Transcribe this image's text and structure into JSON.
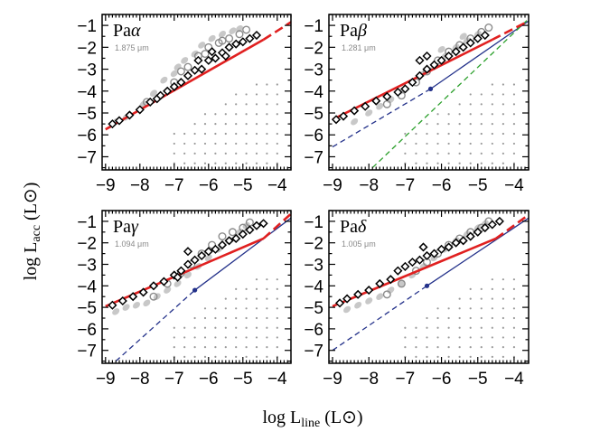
{
  "chart_data": {
    "type": "scatter",
    "layout": "2x2 grid",
    "xlabel": "log L",
    "xlabel_sub": "line",
    "xlabel_unit": "(L",
    "ylabel": "log L",
    "ylabel_sub": "acc",
    "ylabel_unit": "(L",
    "unit_symbol": "⊙",
    "unit_close": ")",
    "xlim": [
      -9.1,
      -3.6
    ],
    "ylim": [
      -7.6,
      -0.5
    ],
    "xticks": [
      -9,
      -8,
      -7,
      -6,
      -5,
      -4
    ],
    "xtick_labels": [
      "−9",
      "−8",
      "−7",
      "−6",
      "−5",
      "−4"
    ],
    "yticks": [
      -7,
      -6,
      -5,
      -4,
      -3,
      -2,
      -1
    ],
    "ytick_labels": [
      "−7",
      "−6",
      "−5",
      "−4",
      "−3",
      "−2",
      "−1"
    ],
    "panels": [
      {
        "name": "Pa",
        "greek": "α",
        "wavelength": "1.875 μm",
        "fit_red": {
          "x": [
            -9.0,
            -4.4
          ],
          "y": [
            -5.75,
            -1.65
          ]
        },
        "fit_red_dashed": {
          "x": [
            -4.4,
            -3.6
          ],
          "y": [
            -1.65,
            -0.85
          ]
        },
        "lines": [],
        "data": {
          "diamonds": [
            [
              -8.8,
              -5.5
            ],
            [
              -8.6,
              -5.35
            ],
            [
              -8.3,
              -5.1
            ],
            [
              -8.0,
              -4.85
            ],
            [
              -7.7,
              -4.5
            ],
            [
              -7.5,
              -4.35
            ],
            [
              -7.2,
              -4.0
            ],
            [
              -7.0,
              -3.8
            ],
            [
              -6.8,
              -3.6
            ],
            [
              -6.6,
              -3.3
            ],
            [
              -6.4,
              -3.05
            ],
            [
              -6.2,
              -3.0
            ],
            [
              -6.0,
              -2.6
            ],
            [
              -5.8,
              -2.5
            ],
            [
              -5.6,
              -2.25
            ],
            [
              -5.4,
              -2.0
            ],
            [
              -5.2,
              -1.85
            ],
            [
              -5.0,
              -1.75
            ],
            [
              -4.8,
              -1.6
            ],
            [
              -4.6,
              -1.45
            ],
            [
              -6.3,
              -2.6
            ],
            [
              -5.9,
              -2.2
            ],
            [
              -5.5,
              -2.4
            ],
            [
              -7.4,
              -4.2
            ]
          ],
          "circles": [
            [
              -7.8,
              -4.5
            ],
            [
              -7.0,
              -3.6
            ],
            [
              -6.6,
              -2.9
            ],
            [
              -6.3,
              -2.4
            ],
            [
              -6.0,
              -2.0
            ],
            [
              -5.7,
              -1.8
            ],
            [
              -5.4,
              -1.6
            ],
            [
              -5.1,
              -1.4
            ],
            [
              -4.9,
              -1.2
            ],
            [
              -6.8,
              -3.1
            ],
            [
              -6.1,
              -2.3
            ],
            [
              -5.6,
              -1.7
            ]
          ],
          "gray": [
            [
              -7.9,
              -4.6
            ],
            [
              -7.6,
              -4.1
            ],
            [
              -7.3,
              -3.5
            ],
            [
              -7.0,
              -3.2
            ],
            [
              -6.7,
              -2.6
            ],
            [
              -6.4,
              -2.3
            ],
            [
              -6.2,
              -1.9
            ],
            [
              -5.9,
              -1.6
            ],
            [
              -5.6,
              -1.4
            ],
            [
              -5.3,
              -1.25
            ],
            [
              -5.1,
              -1.15
            ],
            [
              -8.4,
              -5.2
            ],
            [
              -8.7,
              -5.4
            ],
            [
              -6.9,
              -2.9
            ]
          ]
        }
      },
      {
        "name": "Pa",
        "greek": "β",
        "wavelength": "1.281 μm",
        "fit_red": {
          "x": [
            -9.0,
            -4.6
          ],
          "y": [
            -5.3,
            -1.65
          ]
        },
        "fit_red_dashed": {
          "x": [
            -4.6,
            -3.6
          ],
          "y": [
            -1.65,
            -0.8
          ]
        },
        "lines": [
          {
            "color": "#23318a",
            "x": [
              -9.0,
              -6.3,
              -3.6
            ],
            "y": [
              -6.55,
              -3.9,
              -0.8
            ],
            "dashed_until": -6.3,
            "marker": [
              -6.3,
              -3.9
            ]
          },
          {
            "color": "#2ca02c",
            "x": [
              -7.9,
              -3.6
            ],
            "y": [
              -7.5,
              -0.7
            ],
            "dashed_until": -3.6
          }
        ],
        "data": {
          "diamonds": [
            [
              -8.9,
              -5.3
            ],
            [
              -8.7,
              -5.15
            ],
            [
              -8.4,
              -4.9
            ],
            [
              -8.1,
              -4.7
            ],
            [
              -7.8,
              -4.45
            ],
            [
              -7.5,
              -4.25
            ],
            [
              -7.2,
              -4.05
            ],
            [
              -7.0,
              -3.9
            ],
            [
              -6.8,
              -3.6
            ],
            [
              -6.6,
              -3.3
            ],
            [
              -6.4,
              -3.0
            ],
            [
              -6.2,
              -2.8
            ],
            [
              -6.0,
              -2.6
            ],
            [
              -5.8,
              -2.4
            ],
            [
              -5.6,
              -2.2
            ],
            [
              -5.4,
              -2.0
            ],
            [
              -5.2,
              -1.8
            ],
            [
              -5.0,
              -1.6
            ],
            [
              -4.8,
              -1.45
            ],
            [
              -6.6,
              -2.6
            ],
            [
              -6.4,
              -2.4
            ]
          ],
          "circles": [
            [
              -7.5,
              -4.6
            ],
            [
              -7.1,
              -4.2
            ],
            [
              -6.7,
              -3.6
            ],
            [
              -6.4,
              -3.1
            ],
            [
              -6.1,
              -2.6
            ],
            [
              -5.8,
              -2.2
            ],
            [
              -5.5,
              -1.9
            ],
            [
              -5.2,
              -1.6
            ],
            [
              -4.9,
              -1.3
            ],
            [
              -4.7,
              -1.1
            ]
          ],
          "gray": [
            [
              -8.4,
              -5.4
            ],
            [
              -8.0,
              -5.0
            ],
            [
              -7.7,
              -4.7
            ],
            [
              -7.4,
              -4.4
            ],
            [
              -7.1,
              -4.0
            ],
            [
              -6.8,
              -3.6
            ],
            [
              -6.5,
              -3.2
            ],
            [
              -6.2,
              -2.9
            ],
            [
              -5.9,
              -2.4
            ],
            [
              -5.6,
              -2.0
            ],
            [
              -5.3,
              -1.7
            ],
            [
              -5.0,
              -1.4
            ],
            [
              -6.0,
              -2.1
            ],
            [
              -5.4,
              -1.5
            ]
          ]
        }
      },
      {
        "name": "Pa",
        "greek": "γ",
        "wavelength": "1.094 μm",
        "fit_red": {
          "x": [
            -9.0,
            -4.4
          ],
          "y": [
            -4.95,
            -1.8
          ]
        },
        "fit_red_dashed": {
          "x": [
            -4.4,
            -3.6
          ],
          "y": [
            -1.8,
            -0.65
          ]
        },
        "lines": [
          {
            "color": "#23318a",
            "x": [
              -8.7,
              -6.4,
              -3.6
            ],
            "y": [
              -7.5,
              -4.2,
              -0.85
            ],
            "dashed_until": -6.4,
            "marker": [
              -6.4,
              -4.2
            ]
          }
        ],
        "data": {
          "diamonds": [
            [
              -8.8,
              -4.9
            ],
            [
              -8.5,
              -4.7
            ],
            [
              -8.2,
              -4.5
            ],
            [
              -7.9,
              -4.3
            ],
            [
              -7.6,
              -4.0
            ],
            [
              -7.3,
              -3.8
            ],
            [
              -7.0,
              -3.5
            ],
            [
              -6.8,
              -3.3
            ],
            [
              -6.6,
              -3.0
            ],
            [
              -6.4,
              -2.8
            ],
            [
              -6.2,
              -2.6
            ],
            [
              -6.0,
              -2.4
            ],
            [
              -5.8,
              -2.3
            ],
            [
              -5.6,
              -2.1
            ],
            [
              -5.4,
              -1.9
            ],
            [
              -5.2,
              -1.8
            ],
            [
              -5.0,
              -1.6
            ],
            [
              -4.8,
              -1.4
            ],
            [
              -4.6,
              -1.2
            ],
            [
              -4.4,
              -1.1
            ],
            [
              -6.9,
              -3.6
            ],
            [
              -6.6,
              -2.4
            ]
          ],
          "circles": [
            [
              -7.6,
              -4.5
            ],
            [
              -7.2,
              -3.9
            ],
            [
              -6.8,
              -3.4
            ],
            [
              -6.5,
              -3.0
            ],
            [
              -6.2,
              -2.5
            ],
            [
              -5.9,
              -2.1
            ],
            [
              -5.6,
              -1.7
            ],
            [
              -5.3,
              -1.5
            ],
            [
              -5.0,
              -1.3
            ],
            [
              -4.8,
              -1.05
            ]
          ],
          "gray": [
            [
              -8.7,
              -5.2
            ],
            [
              -8.4,
              -5.0
            ],
            [
              -8.1,
              -4.9
            ],
            [
              -7.8,
              -4.8
            ],
            [
              -7.5,
              -4.5
            ],
            [
              -7.2,
              -4.2
            ],
            [
              -6.9,
              -3.9
            ],
            [
              -6.6,
              -3.5
            ],
            [
              -6.3,
              -3.1
            ],
            [
              -6.0,
              -2.7
            ],
            [
              -5.7,
              -2.3
            ],
            [
              -5.4,
              -1.9
            ],
            [
              -5.1,
              -1.5
            ],
            [
              -4.9,
              -1.2
            ]
          ]
        }
      },
      {
        "name": "Pa",
        "greek": "δ",
        "wavelength": "1.005 μm",
        "fit_red": {
          "x": [
            -9.0,
            -4.5
          ],
          "y": [
            -4.95,
            -1.8
          ]
        },
        "fit_red_dashed": {
          "x": [
            -4.5,
            -3.6
          ],
          "y": [
            -1.8,
            -0.7
          ]
        },
        "lines": [
          {
            "color": "#23318a",
            "x": [
              -9.0,
              -6.4,
              -3.6
            ],
            "y": [
              -7.0,
              -4.0,
              -0.85
            ],
            "dashed_until": -6.4,
            "marker": [
              -6.4,
              -4.0
            ]
          }
        ],
        "data": {
          "diamonds": [
            [
              -8.8,
              -4.8
            ],
            [
              -8.6,
              -4.6
            ],
            [
              -8.3,
              -4.4
            ],
            [
              -8.0,
              -4.2
            ],
            [
              -7.7,
              -3.9
            ],
            [
              -7.4,
              -3.7
            ],
            [
              -7.2,
              -3.3
            ],
            [
              -7.0,
              -3.1
            ],
            [
              -6.8,
              -2.9
            ],
            [
              -6.6,
              -2.8
            ],
            [
              -6.4,
              -2.6
            ],
            [
              -6.2,
              -2.5
            ],
            [
              -6.0,
              -2.3
            ],
            [
              -5.8,
              -2.2
            ],
            [
              -5.6,
              -2.0
            ],
            [
              -5.4,
              -1.9
            ],
            [
              -5.2,
              -1.7
            ],
            [
              -5.0,
              -1.5
            ],
            [
              -4.8,
              -1.3
            ],
            [
              -4.6,
              -1.15
            ],
            [
              -4.4,
              -1.0
            ],
            [
              -6.5,
              -2.2
            ]
          ],
          "circles": [
            [
              -7.5,
              -4.4
            ],
            [
              -7.1,
              -3.9
            ],
            [
              -6.7,
              -3.3
            ],
            [
              -6.4,
              -2.9
            ],
            [
              -6.1,
              -2.5
            ],
            [
              -5.8,
              -2.1
            ],
            [
              -5.5,
              -1.8
            ],
            [
              -5.2,
              -1.5
            ],
            [
              -4.9,
              -1.3
            ],
            [
              -4.7,
              -1.0
            ]
          ],
          "gray": [
            [
              -8.6,
              -5.1
            ],
            [
              -8.3,
              -4.9
            ],
            [
              -8.0,
              -4.7
            ],
            [
              -7.7,
              -4.5
            ],
            [
              -7.4,
              -4.2
            ],
            [
              -7.1,
              -3.9
            ],
            [
              -6.8,
              -3.5
            ],
            [
              -6.5,
              -3.1
            ],
            [
              -6.2,
              -2.7
            ],
            [
              -5.9,
              -2.3
            ],
            [
              -5.6,
              -1.9
            ],
            [
              -5.3,
              -1.6
            ],
            [
              -5.0,
              -1.3
            ],
            [
              -4.8,
              -1.1
            ]
          ]
        }
      }
    ],
    "colors": {
      "fit_red": "#e02020",
      "diamond": "#000000",
      "circle": "#8c8c8c",
      "gray": "#c8c8c8",
      "dot_grid": "#9a9a9a"
    }
  }
}
